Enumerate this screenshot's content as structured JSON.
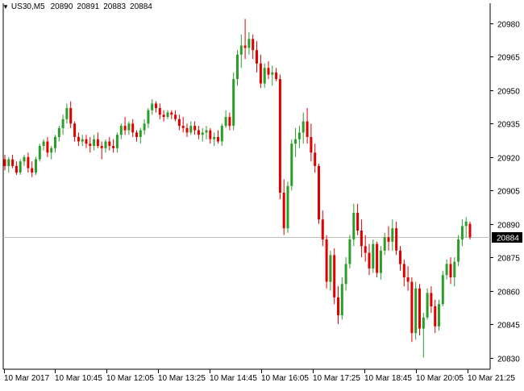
{
  "header": {
    "symbol": "US30,M5",
    "open": "20890",
    "high": "20891",
    "low": "20883",
    "close": "20884"
  },
  "colors": {
    "bull": "#2a9d2a",
    "bear": "#e00000",
    "grid": "#000000",
    "current_line": "#c0c0c0",
    "price_label_bg": "#000000",
    "price_label_text": "#ffffff"
  },
  "chart_data": {
    "type": "candlestick",
    "current_price": "20884",
    "y_ticks": [
      "20980",
      "20965",
      "20950",
      "20935",
      "20920",
      "20905",
      "20890",
      "20875",
      "20860",
      "20845",
      "20830"
    ],
    "x_ticks": [
      "10 Mar 2017",
      "10 Mar 10:45",
      "10 Mar 12:05",
      "10 Mar 13:25",
      "10 Mar 14:45",
      "10 Mar 16:05",
      "10 Mar 17:25",
      "10 Mar 18:45",
      "10 Mar 20:05",
      "10 Mar 21:25"
    ],
    "ylim": [
      20825,
      20985
    ],
    "candles": [
      [
        20919,
        20921,
        20914,
        20916
      ],
      [
        20916,
        20920,
        20913,
        20919
      ],
      [
        20919,
        20921,
        20915,
        20916
      ],
      [
        20916,
        20918,
        20912,
        20913
      ],
      [
        20913,
        20919,
        20912,
        20918
      ],
      [
        20918,
        20921,
        20916,
        20920
      ],
      [
        20920,
        20922,
        20913,
        20915
      ],
      [
        20915,
        20918,
        20911,
        20913
      ],
      [
        20913,
        20920,
        20912,
        20919
      ],
      [
        20919,
        20926,
        20918,
        20925
      ],
      [
        20925,
        20928,
        20923,
        20927
      ],
      [
        20927,
        20929,
        20920,
        20922
      ],
      [
        20922,
        20925,
        20919,
        20924
      ],
      [
        20924,
        20930,
        20922,
        20929
      ],
      [
        20929,
        20934,
        20927,
        20933
      ],
      [
        20933,
        20939,
        20930,
        20937
      ],
      [
        20937,
        20944,
        20935,
        20942
      ],
      [
        20942,
        20945,
        20933,
        20935
      ],
      [
        20935,
        20936,
        20927,
        20929
      ],
      [
        20929,
        20931,
        20925,
        20927
      ],
      [
        20927,
        20930,
        20925,
        20928
      ],
      [
        20928,
        20930,
        20924,
        20926
      ],
      [
        20926,
        20929,
        20922,
        20925
      ],
      [
        20925,
        20930,
        20923,
        20928
      ],
      [
        20928,
        20931,
        20924,
        20925
      ],
      [
        20925,
        20927,
        20919,
        20924
      ],
      [
        20924,
        20928,
        20922,
        20927
      ],
      [
        20927,
        20929,
        20923,
        20925
      ],
      [
        20925,
        20928,
        20922,
        20924
      ],
      [
        20924,
        20931,
        20922,
        20930
      ],
      [
        20930,
        20935,
        20928,
        20934
      ],
      [
        20934,
        20938,
        20930,
        20932
      ],
      [
        20932,
        20936,
        20930,
        20935
      ],
      [
        20935,
        20937,
        20929,
        20931
      ],
      [
        20931,
        20932,
        20927,
        20929
      ],
      [
        20929,
        20933,
        20926,
        20932
      ],
      [
        20932,
        20937,
        20930,
        20935
      ],
      [
        20935,
        20942,
        20933,
        20941
      ],
      [
        20941,
        20946,
        20939,
        20944
      ],
      [
        20944,
        20945,
        20940,
        20942
      ],
      [
        20942,
        20944,
        20937,
        20939
      ],
      [
        20939,
        20941,
        20936,
        20938
      ],
      [
        20938,
        20941,
        20937,
        20940
      ],
      [
        20940,
        20941,
        20937,
        20939
      ],
      [
        20939,
        20941,
        20936,
        20937
      ],
      [
        20937,
        20939,
        20932,
        20934
      ],
      [
        20934,
        20938,
        20931,
        20933
      ],
      [
        20933,
        20935,
        20929,
        20931
      ],
      [
        20931,
        20936,
        20930,
        20934
      ],
      [
        20934,
        20936,
        20930,
        20932
      ],
      [
        20932,
        20934,
        20928,
        20930
      ],
      [
        20930,
        20933,
        20927,
        20931
      ],
      [
        20931,
        20934,
        20928,
        20932
      ],
      [
        20932,
        20933,
        20926,
        20928
      ],
      [
        20928,
        20931,
        20925,
        20929
      ],
      [
        20929,
        20932,
        20926,
        20927
      ],
      [
        20927,
        20935,
        20925,
        20934
      ],
      [
        20934,
        20941,
        20933,
        20938
      ],
      [
        20938,
        20940,
        20932,
        20934
      ],
      [
        20934,
        20958,
        20932,
        20955
      ],
      [
        20955,
        20968,
        20952,
        20966
      ],
      [
        20966,
        20975,
        20960,
        20970
      ],
      [
        20970,
        20982,
        20964,
        20969
      ],
      [
        20969,
        20976,
        20966,
        20973
      ],
      [
        20973,
        20975,
        20964,
        20968
      ],
      [
        20968,
        20972,
        20958,
        20962
      ],
      [
        20962,
        20966,
        20951,
        20953
      ],
      [
        20953,
        20962,
        20951,
        20960
      ],
      [
        20960,
        20963,
        20955,
        20957
      ],
      [
        20957,
        20961,
        20952,
        20958
      ],
      [
        20958,
        20960,
        20954,
        20955
      ],
      [
        20955,
        20957,
        20901,
        20904
      ],
      [
        20904,
        20910,
        20885,
        20888
      ],
      [
        20888,
        20909,
        20886,
        20907
      ],
      [
        20907,
        20928,
        20905,
        20926
      ],
      [
        20926,
        20933,
        20920,
        20928
      ],
      [
        20928,
        20934,
        20924,
        20931
      ],
      [
        20931,
        20940,
        20926,
        20936
      ],
      [
        20936,
        20942,
        20926,
        20929
      ],
      [
        20929,
        20935,
        20918,
        20922
      ],
      [
        20922,
        20926,
        20913,
        20916
      ],
      [
        20916,
        20917,
        20890,
        20892
      ],
      [
        20892,
        20896,
        20880,
        20883
      ],
      [
        20883,
        20885,
        20861,
        20864
      ],
      [
        20864,
        20878,
        20860,
        20876
      ],
      [
        20876,
        20879,
        20854,
        20857
      ],
      [
        20857,
        20862,
        20845,
        20849
      ],
      [
        20849,
        20866,
        20847,
        20863
      ],
      [
        20863,
        20875,
        20860,
        20872
      ],
      [
        20872,
        20885,
        20870,
        20883
      ],
      [
        20883,
        20899,
        20880,
        20895
      ],
      [
        20895,
        20899,
        20885,
        20887
      ],
      [
        20887,
        20892,
        20875,
        20880
      ],
      [
        20880,
        20885,
        20873,
        20877
      ],
      [
        20877,
        20881,
        20867,
        20870
      ],
      [
        20870,
        20883,
        20868,
        20881
      ],
      [
        20881,
        20882,
        20866,
        20868
      ],
      [
        20868,
        20880,
        20865,
        20878
      ],
      [
        20878,
        20886,
        20876,
        20884
      ],
      [
        20884,
        20889,
        20878,
        20882
      ],
      [
        20882,
        20892,
        20878,
        20888
      ],
      [
        20888,
        20891,
        20876,
        20878
      ],
      [
        20878,
        20880,
        20869,
        20872
      ],
      [
        20872,
        20874,
        20862,
        20866
      ],
      [
        20866,
        20871,
        20860,
        20864
      ],
      [
        20864,
        20866,
        20837,
        20841
      ],
      [
        20841,
        20864,
        20838,
        20861
      ],
      [
        20861,
        20863,
        20840,
        20843
      ],
      [
        20843,
        20850,
        20830,
        20848
      ],
      [
        20848,
        20861,
        20847,
        20859
      ],
      [
        20859,
        20862,
        20850,
        20853
      ],
      [
        20853,
        20856,
        20841,
        20844
      ],
      [
        20844,
        20856,
        20842,
        20854
      ],
      [
        20854,
        20869,
        20853,
        20867
      ],
      [
        20867,
        20874,
        20865,
        20872
      ],
      [
        20872,
        20875,
        20863,
        20866
      ],
      [
        20866,
        20875,
        20862,
        20873
      ],
      [
        20873,
        20885,
        20871,
        20883
      ],
      [
        20883,
        20892,
        20880,
        20889
      ],
      [
        20889,
        20893,
        20884,
        20891
      ],
      [
        20890,
        20891,
        20883,
        20884
      ]
    ]
  }
}
